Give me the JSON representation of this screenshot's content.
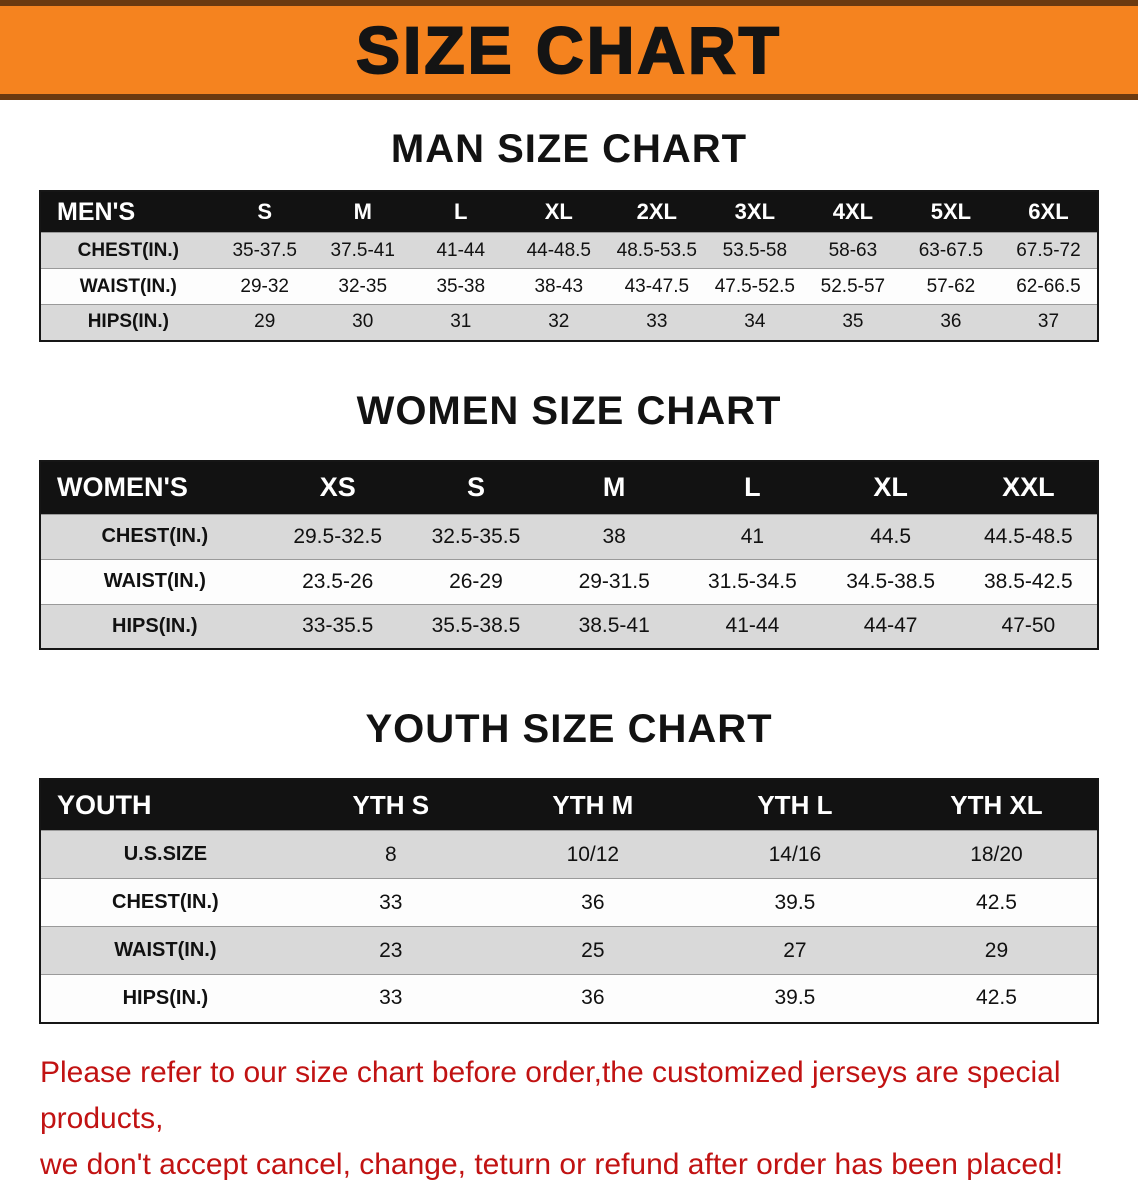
{
  "banner": {
    "title": "SIZE CHART"
  },
  "colors": {
    "banner_orange": "#f5831f",
    "banner_border": "#6b3a10",
    "header_black": "#121212",
    "row_gray": "#d9d9d9",
    "notice_red": "#c11212"
  },
  "sections": [
    {
      "heading": "MAN SIZE CHART",
      "table": {
        "header": [
          "MEN'S",
          "S",
          "M",
          "L",
          "XL",
          "2XL",
          "3XL",
          "4XL",
          "5XL",
          "6XL"
        ],
        "rows": [
          {
            "label": "CHEST(IN.)",
            "values": [
              "35-37.5",
              "37.5-41",
              "41-44",
              "44-48.5",
              "48.5-53.5",
              "53.5-58",
              "58-63",
              "63-67.5",
              "67.5-72"
            ]
          },
          {
            "label": "WAIST(IN.)",
            "values": [
              "29-32",
              "32-35",
              "35-38",
              "38-43",
              "43-47.5",
              "47.5-52.5",
              "52.5-57",
              "57-62",
              "62-66.5"
            ]
          },
          {
            "label": "HIPS(IN.)",
            "values": [
              "29",
              "30",
              "31",
              "32",
              "33",
              "34",
              "35",
              "36",
              "37"
            ]
          }
        ]
      }
    },
    {
      "heading": "WOMEN SIZE CHART",
      "table": {
        "header": [
          "WOMEN'S",
          "XS",
          "S",
          "M",
          "L",
          "XL",
          "XXL"
        ],
        "rows": [
          {
            "label": "CHEST(IN.)",
            "values": [
              "29.5-32.5",
              "32.5-35.5",
              "38",
              "41",
              "44.5",
              "44.5-48.5"
            ]
          },
          {
            "label": "WAIST(IN.)",
            "values": [
              "23.5-26",
              "26-29",
              "29-31.5",
              "31.5-34.5",
              "34.5-38.5",
              "38.5-42.5"
            ]
          },
          {
            "label": "HIPS(IN.)",
            "values": [
              "33-35.5",
              "35.5-38.5",
              "38.5-41",
              "41-44",
              "44-47",
              "47-50"
            ]
          }
        ]
      }
    },
    {
      "heading": "YOUTH SIZE CHART",
      "table": {
        "header": [
          "YOUTH",
          "YTH S",
          "YTH M",
          "YTH L",
          "YTH XL"
        ],
        "rows": [
          {
            "label": "U.S.SIZE",
            "values": [
              "8",
              "10/12",
              "14/16",
              "18/20"
            ]
          },
          {
            "label": "CHEST(IN.)",
            "values": [
              "33",
              "36",
              "39.5",
              "42.5"
            ]
          },
          {
            "label": "WAIST(IN.)",
            "values": [
              "23",
              "25",
              "27",
              "29"
            ]
          },
          {
            "label": "HIPS(IN.)",
            "values": [
              "33",
              "36",
              "39.5",
              "42.5"
            ]
          }
        ]
      }
    }
  ],
  "footer": {
    "line1": "Please refer to our size chart before order,the customized jerseys are special products,",
    "line2": "we don't accept cancel, change, teturn or refund after order has been placed!"
  }
}
